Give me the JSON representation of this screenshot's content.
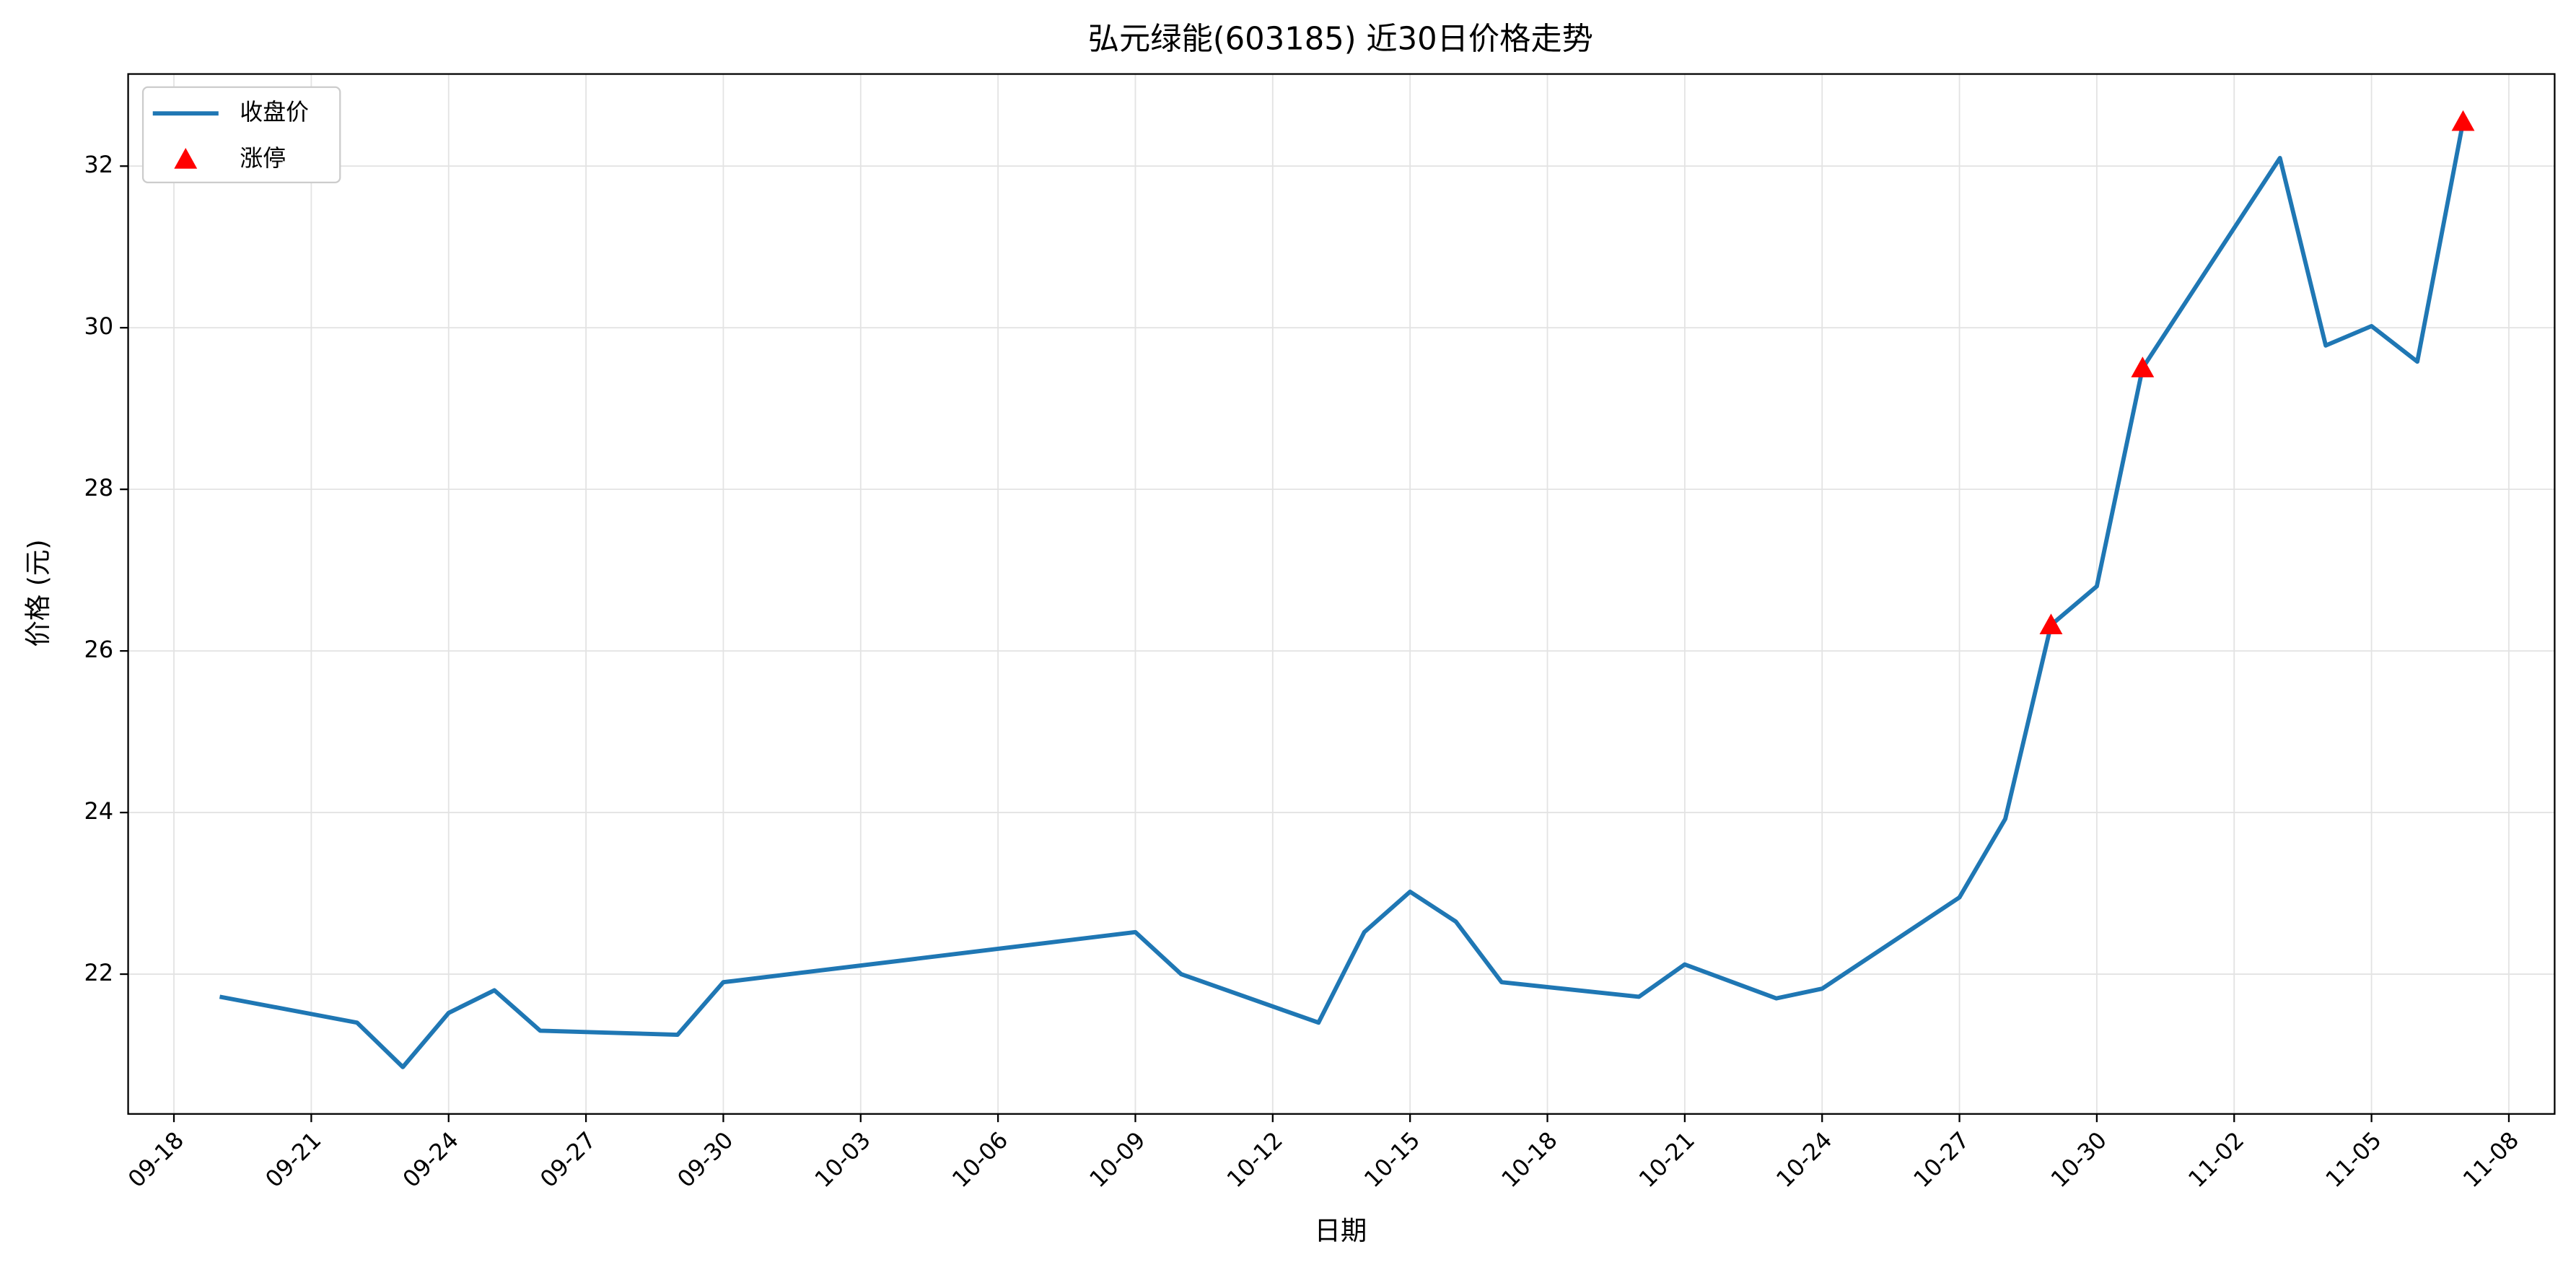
{
  "chart_data": {
    "type": "line",
    "title": "弘元绿能(603185) 近30日价格走势",
    "x_label": "日期",
    "y_label": "价格 (元)",
    "xlim": [
      "09-17",
      "11-09"
    ],
    "xticks": [
      "09-18",
      "09-21",
      "09-24",
      "09-27",
      "09-30",
      "10-03",
      "10-06",
      "10-09",
      "10-12",
      "10-15",
      "10-18",
      "10-21",
      "10-24",
      "10-27",
      "10-30",
      "11-02",
      "11-05",
      "11-08"
    ],
    "ylim": [
      20.27,
      33.14
    ],
    "yticks": [
      22,
      24,
      26,
      28,
      30,
      32
    ],
    "grid": true,
    "legend": "upper left",
    "series": [
      {
        "name": "收盘价",
        "type": "line",
        "color": "#1f77b4",
        "x": [
          "09-19",
          "09-22",
          "09-23",
          "09-24",
          "09-25",
          "09-26",
          "09-29",
          "09-30",
          "10-09",
          "10-10",
          "10-13",
          "10-14",
          "10-15",
          "10-16",
          "10-17",
          "10-20",
          "10-21",
          "10-23",
          "10-24",
          "10-27",
          "10-28",
          "10-29",
          "10-30",
          "10-31",
          "11-03",
          "11-04",
          "11-05",
          "11-06",
          "11-07"
        ],
        "values": [
          21.72,
          21.4,
          20.85,
          21.52,
          21.8,
          21.3,
          21.25,
          21.9,
          22.52,
          22.0,
          21.4,
          22.52,
          23.02,
          22.65,
          21.9,
          21.72,
          22.12,
          21.7,
          21.82,
          22.95,
          23.92,
          26.32,
          26.8,
          29.5,
          32.1,
          29.78,
          30.02,
          29.58,
          32.55
        ]
      },
      {
        "name": "涨停",
        "type": "scatter",
        "marker": "triangle",
        "color": "#ff0000",
        "x": [
          "10-29",
          "10-31",
          "11-07"
        ],
        "values": [
          26.32,
          29.5,
          32.55
        ]
      }
    ]
  }
}
